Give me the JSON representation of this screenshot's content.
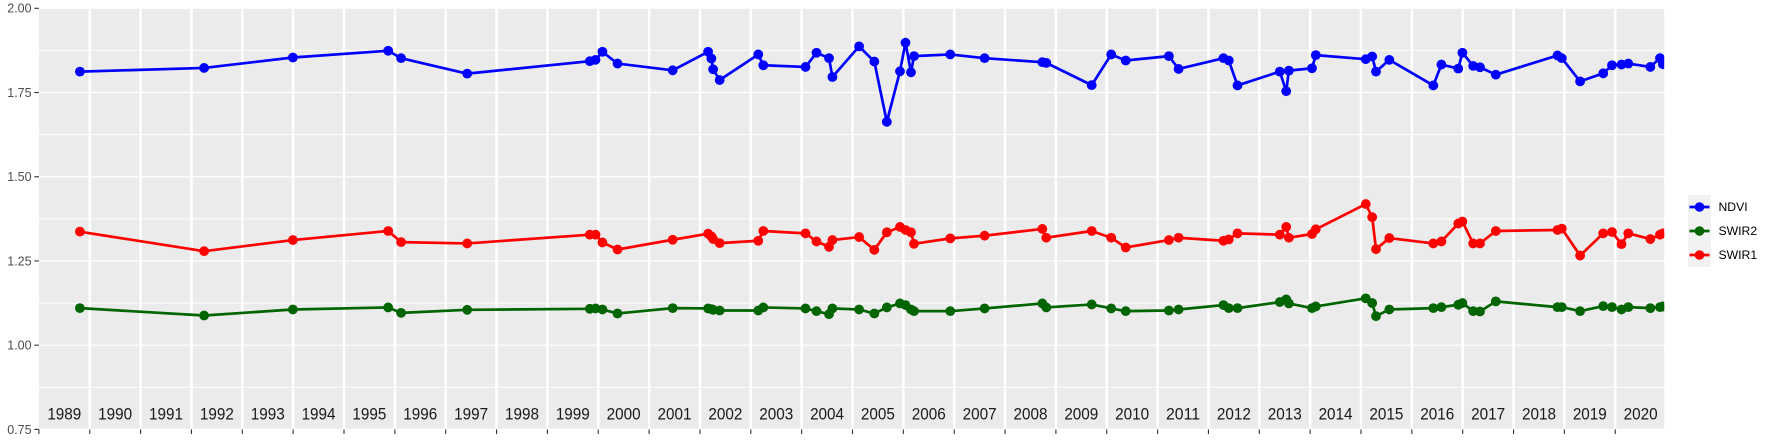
{
  "chart_data": {
    "type": "line",
    "title": "",
    "xlabel": "",
    "ylabel": "",
    "x_unit": "decimal_year",
    "x_domain": [
      1989.0,
      2020.96
    ],
    "y_domain": [
      0.75,
      2.0
    ],
    "y_major_ticks": [
      2.0,
      1.75,
      1.5,
      1.25,
      1.0,
      0.75
    ],
    "y_tick_labels": [
      "2.00",
      "1.75",
      "1.50",
      "1.25",
      "1.00",
      "0.75"
    ],
    "y_minor_ticks": [
      1.875,
      1.625,
      1.375,
      1.125,
      0.875
    ],
    "x_boundary_years": [
      1989,
      1990,
      1991,
      1992,
      1993,
      1994,
      1995,
      1996,
      1997,
      1998,
      1999,
      2000,
      2001,
      2002,
      2003,
      2004,
      2005,
      2006,
      2007,
      2008,
      2009,
      2010,
      2011,
      2012,
      2013,
      2014,
      2015,
      2016,
      2017,
      2018,
      2019,
      2020
    ],
    "year_band_labels": [
      "1989",
      "1990",
      "1991",
      "1992",
      "1993",
      "1994",
      "1995",
      "1996",
      "1997",
      "1998",
      "1999",
      "2000",
      "2001",
      "2002",
      "2003",
      "2004",
      "2005",
      "2006",
      "2007",
      "2008",
      "2009",
      "2010",
      "2011",
      "2012",
      "2013",
      "2014",
      "2015",
      "2016",
      "2017",
      "2018",
      "2019",
      "2020"
    ],
    "grid": {
      "major_color": "#FFFFFF",
      "minor_color": "#FFFFFF",
      "panel_background": "#EBEBEB"
    },
    "legend_position": "right",
    "x": [
      1989.806,
      1992.249,
      1993.995,
      1995.869,
      1996.123,
      1997.423,
      1999.834,
      1999.946,
      2000.082,
      2000.379,
      2001.464,
      2002.16,
      2002.225,
      2002.259,
      2002.388,
      2003.147,
      2003.246,
      2004.076,
      2004.292,
      2004.538,
      2004.605,
      2005.13,
      2005.429,
      2005.675,
      2005.934,
      2006.042,
      2006.15,
      2006.209,
      2006.923,
      2007.598,
      2008.733,
      2008.811,
      2009.704,
      2010.088,
      2010.373,
      2011.222,
      2011.413,
      2012.294,
      2012.4,
      2012.571,
      2013.403,
      2013.529,
      2013.582,
      2014.036,
      2014.111,
      2015.094,
      2015.22,
      2015.295,
      2015.557,
      2016.422,
      2016.581,
      2016.913,
      2016.994,
      2017.206,
      2017.34,
      2017.651,
      2018.864,
      2018.949,
      2019.309,
      2019.763,
      2019.936,
      2020.123,
      2020.257,
      2020.69,
      2020.88,
      2020.937
    ],
    "series": [
      {
        "name": "NDVI",
        "color": "#0000FF",
        "values": [
          1.812,
          1.823,
          1.854,
          1.874,
          1.852,
          1.806,
          1.843,
          1.847,
          1.871,
          1.836,
          1.816,
          1.871,
          1.851,
          1.819,
          1.787,
          1.863,
          1.831,
          1.826,
          1.868,
          1.852,
          1.796,
          1.887,
          1.842,
          1.663,
          1.813,
          1.898,
          1.81,
          1.858,
          1.863,
          1.852,
          1.84,
          1.838,
          1.772,
          1.863,
          1.845,
          1.858,
          1.82,
          1.852,
          1.845,
          1.771,
          1.812,
          1.754,
          1.815,
          1.822,
          1.861,
          1.849,
          1.857,
          1.812,
          1.847,
          1.771,
          1.833,
          1.821,
          1.868,
          1.829,
          1.825,
          1.803,
          1.86,
          1.852,
          1.783,
          1.807,
          1.831,
          1.833,
          1.836,
          1.826,
          1.852,
          1.834
        ]
      },
      {
        "name": "SWIR2",
        "color": "#006400",
        "values": [
          1.11,
          1.088,
          1.106,
          1.112,
          1.096,
          1.105,
          1.108,
          1.109,
          1.106,
          1.094,
          1.11,
          1.109,
          1.107,
          1.105,
          1.103,
          1.103,
          1.112,
          1.109,
          1.101,
          1.092,
          1.109,
          1.106,
          1.094,
          1.112,
          1.124,
          1.119,
          1.106,
          1.101,
          1.101,
          1.109,
          1.124,
          1.112,
          1.121,
          1.109,
          1.101,
          1.103,
          1.106,
          1.119,
          1.11,
          1.11,
          1.128,
          1.136,
          1.124,
          1.11,
          1.115,
          1.139,
          1.125,
          1.086,
          1.106,
          1.11,
          1.113,
          1.12,
          1.125,
          1.101,
          1.1,
          1.13,
          1.113,
          1.113,
          1.101,
          1.116,
          1.113,
          1.106,
          1.113,
          1.11,
          1.113,
          1.115
        ]
      },
      {
        "name": "SWIR1",
        "color": "#FF0000",
        "values": [
          1.337,
          1.279,
          1.312,
          1.339,
          1.306,
          1.302,
          1.328,
          1.328,
          1.305,
          1.284,
          1.313,
          1.331,
          1.323,
          1.315,
          1.303,
          1.31,
          1.339,
          1.332,
          1.308,
          1.292,
          1.312,
          1.321,
          1.283,
          1.335,
          1.351,
          1.342,
          1.335,
          1.301,
          1.317,
          1.325,
          1.345,
          1.319,
          1.339,
          1.319,
          1.29,
          1.312,
          1.319,
          1.31,
          1.314,
          1.332,
          1.328,
          1.351,
          1.319,
          1.33,
          1.344,
          1.419,
          1.38,
          1.285,
          1.318,
          1.302,
          1.308,
          1.361,
          1.367,
          1.302,
          1.302,
          1.339,
          1.342,
          1.346,
          1.266,
          1.332,
          1.336,
          1.3,
          1.332,
          1.315,
          1.328,
          1.332
        ]
      }
    ]
  },
  "legend": {
    "items": [
      {
        "label": "NDVI",
        "color": "#0000FF"
      },
      {
        "label": "SWIR2",
        "color": "#006400"
      },
      {
        "label": "SWIR1",
        "color": "#FF0000"
      }
    ],
    "key_background": "#F2F2F2"
  },
  "style": {
    "axis_text_color": "#4D4D4D",
    "tick_color": "#333333",
    "year_label_color": "#1A1A1A"
  }
}
